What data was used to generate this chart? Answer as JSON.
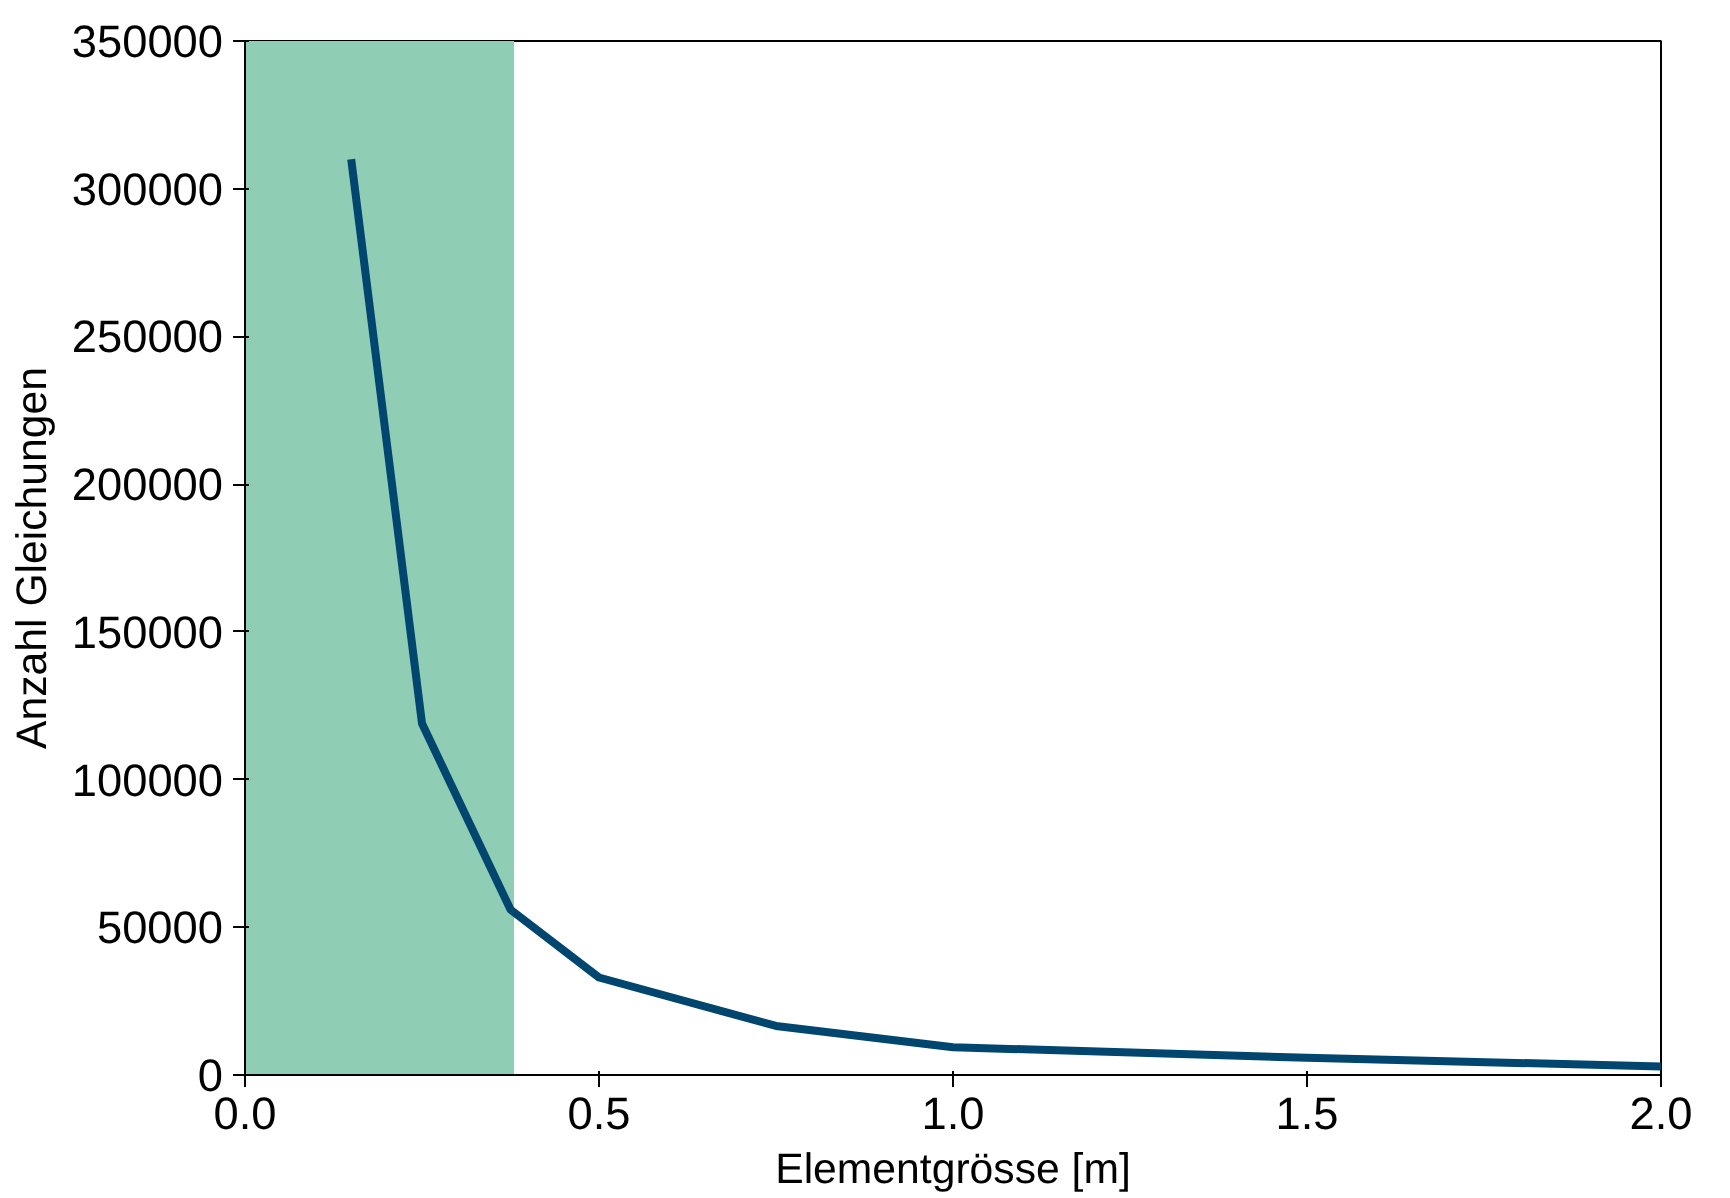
{
  "chart_data": {
    "type": "line",
    "xlabel": "Elementgrösse [m]",
    "ylabel": "Anzahl Gleichungen",
    "x": [
      0.15,
      0.25,
      0.375,
      0.5,
      0.75,
      1.0,
      1.5,
      2.0
    ],
    "series": [
      {
        "color": "#00466e",
        "values": [
          310000,
          119000,
          56000,
          33000,
          16600,
          9400,
          5800,
          2900
        ]
      }
    ],
    "xlim": [
      0,
      2
    ],
    "xticks": [
      {
        "value": 0,
        "label": "0.0"
      },
      {
        "value": 0.5,
        "label": "0.5"
      },
      {
        "value": 1,
        "label": "1.0"
      },
      {
        "value": 1.5,
        "label": "1.5"
      },
      {
        "value": 2,
        "label": "2.0"
      }
    ],
    "ylim": [
      0,
      350000
    ],
    "yticks": [
      0,
      50000,
      100000,
      150000,
      200000,
      250000,
      300000,
      350000
    ],
    "bands": [
      {
        "axis": "x",
        "from": 0,
        "to": 0.38,
        "color": "#8fcdb4"
      }
    ],
    "grid": false,
    "marker": "none",
    "line_style": "solid"
  }
}
